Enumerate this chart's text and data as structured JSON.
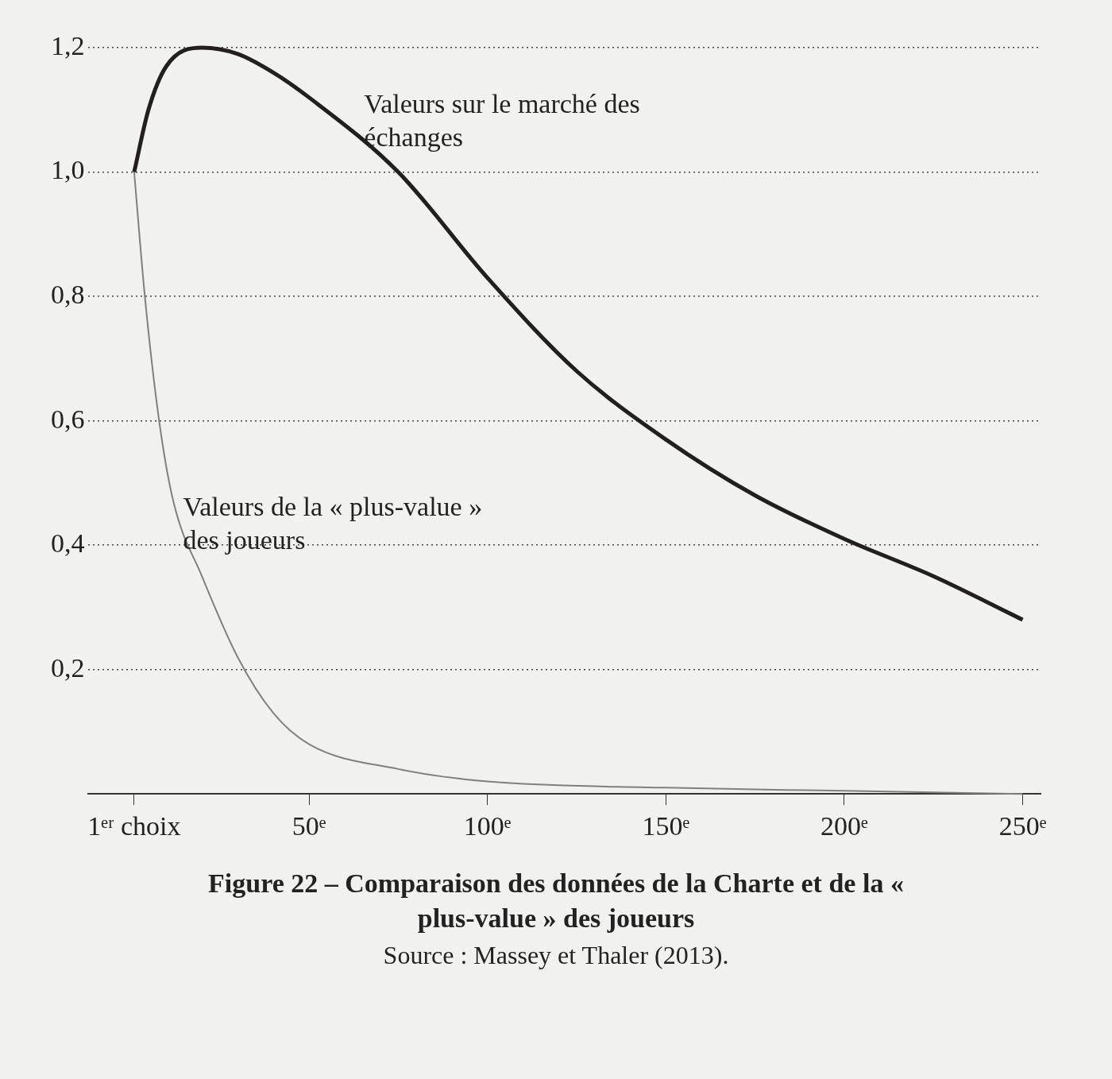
{
  "chart_data": {
    "type": "line",
    "title": "Figure 22 – Comparaison des données de la Charte et de la « plus-value » des joueurs",
    "annotations": [
      "Source : Massey et Thaler (2013)."
    ],
    "series": [
      {
        "name": "Valeurs sur le marché des échanges",
        "color": "#231f20",
        "x": [
          1,
          5,
          10,
          20,
          30,
          40,
          50,
          75,
          100,
          125,
          150,
          175,
          200,
          225,
          250
        ],
        "values": [
          1.0,
          1.1,
          1.17,
          1.2,
          1.19,
          1.16,
          1.12,
          1.0,
          0.83,
          0.68,
          0.57,
          0.48,
          0.41,
          0.35,
          0.28
        ]
      },
      {
        "name": "Valeurs de la « plus-value » des joueurs",
        "color": "#808080",
        "x": [
          1,
          4,
          8,
          12,
          20,
          30,
          40,
          50,
          75,
          100,
          150,
          200,
          250
        ],
        "values": [
          1.0,
          0.8,
          0.6,
          0.47,
          0.35,
          0.22,
          0.13,
          0.08,
          0.04,
          0.02,
          0.01,
          0.005,
          0.0
        ]
      }
    ],
    "xlim": [
      -12,
      255
    ],
    "xticks": [
      {
        "value": 1,
        "label": "1ᵉʳ choix"
      },
      {
        "value": 50,
        "label": "50ᵉ"
      },
      {
        "value": 100,
        "label": "100ᵉ"
      },
      {
        "value": 150,
        "label": "150ᵉ"
      },
      {
        "value": 200,
        "label": "200ᵉ"
      },
      {
        "value": 250,
        "label": "250ᵉ"
      }
    ],
    "ylim": [
      0,
      1.2
    ],
    "yticks": [
      {
        "value": 0.2,
        "label": "0,2"
      },
      {
        "value": 0.4,
        "label": "0,4"
      },
      {
        "value": 0.6,
        "label": "0,6"
      },
      {
        "value": 0.8,
        "label": "0,8"
      },
      {
        "value": 1.0,
        "label": "1,0"
      },
      {
        "value": 1.2,
        "label": "1,2"
      }
    ],
    "grid": "y",
    "legend": false
  }
}
